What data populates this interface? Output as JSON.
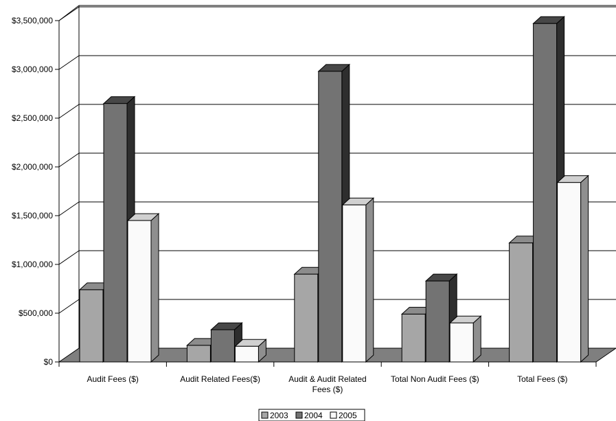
{
  "chart_data": {
    "type": "bar",
    "title": "",
    "xlabel": "",
    "ylabel": "",
    "categories": [
      "Audit Fees ($)",
      "Audit Related Fees($)",
      "Audit & Audit Related Fees ($)",
      "Total Non Audit Fees ($)",
      "Total Fees ($)"
    ],
    "series": [
      {
        "name": "2003",
        "values": [
          740000,
          170000,
          900000,
          490000,
          1220000
        ],
        "color": "#a6a6a6",
        "side_color": "#7a7a7a",
        "top_color": "#8c8c8c"
      },
      {
        "name": "2004",
        "values": [
          2650000,
          330000,
          2980000,
          830000,
          3470000
        ],
        "color": "#737373",
        "side_color": "#2e2e2e",
        "top_color": "#474747"
      },
      {
        "name": "2005",
        "values": [
          1450000,
          160000,
          1610000,
          400000,
          1840000
        ],
        "color": "#fafafa",
        "side_color": "#8f8f8f",
        "top_color": "#d0d0d0"
      }
    ],
    "ylim": [
      0,
      3500000
    ],
    "yticks": [
      0,
      500000,
      1000000,
      1500000,
      2000000,
      2500000,
      3000000,
      3500000
    ],
    "ytick_labels": [
      "$0",
      "$500,000",
      "$1,000,000",
      "$1,500,000",
      "$2,000,000",
      "$2,500,000",
      "$3,000,000",
      "$3,500,000"
    ],
    "category_labels": [
      [
        "Audit Fees ($)"
      ],
      [
        "Audit Related Fees($)"
      ],
      [
        "Audit & Audit Related",
        "Fees ($)"
      ],
      [
        "Total Non Audit Fees ($)"
      ],
      [
        "Total Fees ($)"
      ]
    ],
    "grid": true,
    "legend_position": "bottom-center",
    "floor_color": "#7f7f7f"
  }
}
